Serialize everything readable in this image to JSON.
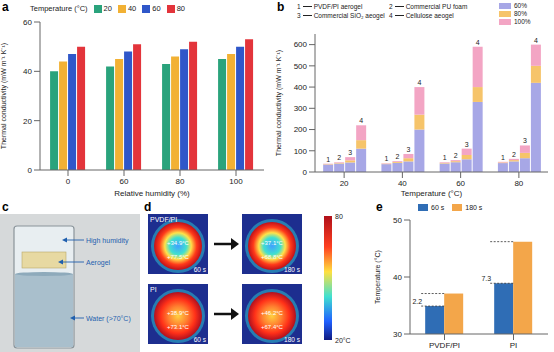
{
  "chart_data": [
    {
      "panel": "a",
      "type": "bar",
      "x_label": "Relative humidity (%)",
      "y_label": "Thermal conductivity (mW m⁻¹ K⁻¹)",
      "legend_title": "Temperature (°C)",
      "categories": [
        "0",
        "60",
        "80",
        "100"
      ],
      "series": [
        {
          "name": "20",
          "color": "#2aa37c",
          "values": [
            40,
            42,
            43,
            45
          ]
        },
        {
          "name": "40",
          "color": "#f2b134",
          "values": [
            44,
            45,
            46,
            47
          ]
        },
        {
          "name": "60",
          "color": "#2f57c9",
          "values": [
            47,
            48,
            49,
            50
          ]
        },
        {
          "name": "80",
          "color": "#e3343b",
          "values": [
            50,
            51,
            52,
            53
          ]
        }
      ],
      "ylim": [
        0,
        60
      ],
      "yticks": [
        0,
        20,
        40,
        60
      ],
      "grid": false,
      "legend": "top"
    },
    {
      "panel": "b",
      "type": "bar",
      "stacked": true,
      "x_label": "Temperature (°C)",
      "y_label": "Thermal conductivity (mW m⁻¹ K⁻¹)",
      "categories": [
        "20",
        "40",
        "60",
        "80"
      ],
      "segments": [
        {
          "name": "60%",
          "color": "#a7a7e6"
        },
        {
          "name": "80%",
          "color": "#f6c46a"
        },
        {
          "name": "100%",
          "color": "#f3a5c4"
        }
      ],
      "series": [
        {
          "name": "PVDF/PI aerogel",
          "label": "1",
          "values": [
            [
              35,
              2,
              2
            ],
            [
              37,
              2,
              2
            ],
            [
              40,
              3,
              3
            ],
            [
              42,
              3,
              3
            ]
          ]
        },
        {
          "name": "Commercial PU foam",
          "label": "2",
          "values": [
            [
              40,
              3,
              3
            ],
            [
              43,
              4,
              4
            ],
            [
              46,
              5,
              5
            ],
            [
              50,
              6,
              6
            ]
          ]
        },
        {
          "name": "Commercial SiO₂ aeogel",
          "label": "3",
          "values": [
            [
              45,
              10,
              15
            ],
            [
              50,
              15,
              20
            ],
            [
              60,
              20,
              30
            ],
            [
              65,
              25,
              35
            ]
          ]
        },
        {
          "name": "Cellulose aeogel",
          "label": "4",
          "values": [
            [
              110,
              40,
              70
            ],
            [
              200,
              70,
              130
            ],
            [
              330,
              70,
              190
            ],
            [
              420,
              80,
              100
            ]
          ]
        }
      ],
      "ylim": [
        0,
        650
      ],
      "yticks": [
        0,
        100,
        200,
        300,
        400,
        500,
        600
      ],
      "grid": false,
      "legend": "top"
    },
    {
      "panel": "e",
      "type": "bar",
      "y_label": "Temperature (°C)",
      "categories": [
        "PVDF/PI",
        "PI"
      ],
      "series": [
        {
          "name": "60 s",
          "color": "#2f6db5",
          "values": [
            34.9,
            38.9
          ]
        },
        {
          "name": "180 s",
          "color": "#f3a64a",
          "values": [
            37.1,
            46.2
          ]
        }
      ],
      "ylim": [
        30,
        50
      ],
      "yticks": [
        30,
        40,
        50
      ],
      "annotations": [
        {
          "category": "PVDF/PI",
          "text": "2.2"
        },
        {
          "category": "PI",
          "text": "7.3"
        }
      ],
      "grid": false,
      "legend": "top-left"
    }
  ],
  "panel_c": {
    "panel": "c",
    "labels": [
      "High humidity",
      "Aerogel",
      "Water (>70°C)"
    ]
  },
  "panel_d": {
    "panel": "d",
    "colorbar": {
      "range": [
        20,
        80
      ],
      "ticks": [
        {
          "value": 80,
          "label": "80"
        },
        {
          "value": 20,
          "label": "20°C"
        }
      ]
    },
    "rows": [
      {
        "label": "PVDF/PI",
        "images": [
          {
            "time": "60 s",
            "center": "+34.9°C",
            "edge": "+77.5°C"
          },
          {
            "time": "180 s",
            "center": "+37.1°C",
            "edge": "+68.8°C"
          }
        ]
      },
      {
        "label": "PI",
        "images": [
          {
            "time": "60 s",
            "center": "+38.9°C",
            "edge": "+73.1°C"
          },
          {
            "time": "180 s",
            "center": "+46.2°C",
            "edge": "+67.4°C"
          }
        ]
      }
    ]
  }
}
